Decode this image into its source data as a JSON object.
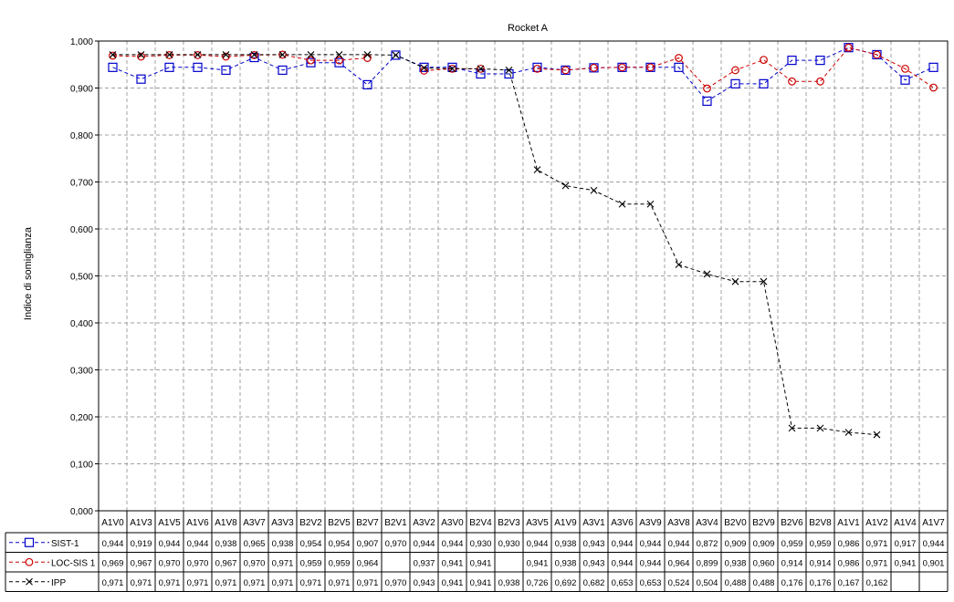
{
  "chart_data": {
    "type": "line",
    "title": "Rocket A",
    "ylabel": "Indice di somiglianza",
    "xlabel": "",
    "ylim": [
      0,
      1
    ],
    "y_ticks": [
      "0,000",
      "0,100",
      "0,200",
      "0,300",
      "0,400",
      "0,500",
      "0,600",
      "0,700",
      "0,800",
      "0,900",
      "1,000"
    ],
    "grid": true,
    "legend_placement": "data table rows at bottom",
    "categories": [
      "A1V0",
      "A1V3",
      "A1V5",
      "A1V6",
      "A1V8",
      "A3V7",
      "A3V3",
      "B2V2",
      "B2V5",
      "B2V7",
      "B2V1",
      "A3V2",
      "A3V0",
      "B2V4",
      "B2V3",
      "A3V5",
      "A1V9",
      "A3V1",
      "A3V6",
      "A3V9",
      "A3V8",
      "A3V4",
      "B2V0",
      "B2V9",
      "B2V6",
      "B2V8",
      "A1V1",
      "A1V2",
      "A1V4",
      "A1V7"
    ],
    "series": [
      {
        "name": "SIST-1",
        "color": "#0000cc",
        "marker": "square",
        "values": [
          0.944,
          0.919,
          0.944,
          0.944,
          0.938,
          0.965,
          0.938,
          0.954,
          0.954,
          0.907,
          0.97,
          0.944,
          0.944,
          0.93,
          0.93,
          0.944,
          0.938,
          0.943,
          0.944,
          0.944,
          0.944,
          0.872,
          0.909,
          0.909,
          0.959,
          0.959,
          0.986,
          0.971,
          0.917,
          0.944
        ],
        "labels": [
          "0,944",
          "0,919",
          "0,944",
          "0,944",
          "0,938",
          "0,965",
          "0,938",
          "0,954",
          "0,954",
          "0,907",
          "0,970",
          "0,944",
          "0,944",
          "0,930",
          "0,930",
          "0,944",
          "0,938",
          "0,943",
          "0,944",
          "0,944",
          "0,944",
          "0,872",
          "0,909",
          "0,909",
          "0,959",
          "0,959",
          "0,986",
          "0,971",
          "0,917",
          "0,944"
        ]
      },
      {
        "name": "LOC-SIS 1",
        "color": "#cc0000",
        "marker": "circle",
        "values": [
          0.969,
          0.967,
          0.97,
          0.97,
          0.967,
          0.97,
          0.971,
          0.959,
          0.959,
          0.964,
          null,
          0.937,
          0.941,
          0.941,
          null,
          0.941,
          0.938,
          0.943,
          0.944,
          0.944,
          0.964,
          0.899,
          0.938,
          0.96,
          0.914,
          0.914,
          0.986,
          0.971,
          0.941,
          0.901
        ],
        "labels": [
          "0,969",
          "0,967",
          "0,970",
          "0,970",
          "0,967",
          "0,970",
          "0,971",
          "0,959",
          "0,959",
          "0,964",
          "",
          "0,937",
          "0,941",
          "0,941",
          "",
          "0,941",
          "0,938",
          "0,943",
          "0,944",
          "0,944",
          "0,964",
          "0,899",
          "0,938",
          "0,960",
          "0,914",
          "0,914",
          "0,986",
          "0,971",
          "0,941",
          "0,901"
        ]
      },
      {
        "name": "IPP",
        "color": "#000000",
        "marker": "x",
        "values": [
          0.971,
          0.971,
          0.971,
          0.971,
          0.971,
          0.971,
          0.971,
          0.971,
          0.971,
          0.971,
          0.97,
          0.943,
          0.941,
          0.941,
          0.938,
          0.726,
          0.692,
          0.682,
          0.653,
          0.653,
          0.524,
          0.504,
          0.488,
          0.488,
          0.176,
          0.176,
          0.167,
          0.162,
          null,
          null
        ],
        "labels": [
          "0,971",
          "0,971",
          "0,971",
          "0,971",
          "0,971",
          "0,971",
          "0,971",
          "0,971",
          "0,971",
          "0,971",
          "0,970",
          "0,943",
          "0,941",
          "0,941",
          "0,938",
          "0,726",
          "0,692",
          "0,682",
          "0,653",
          "0,653",
          "0,524",
          "0,504",
          "0,488",
          "0,488",
          "0,176",
          "0,176",
          "0,167",
          "0,162",
          "",
          ""
        ]
      }
    ]
  }
}
